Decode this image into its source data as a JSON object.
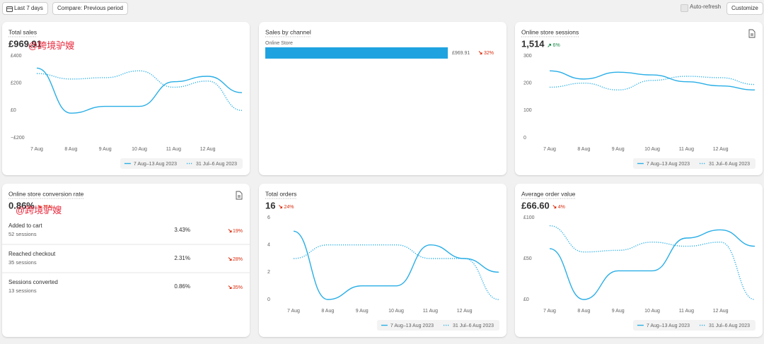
{
  "toolbar": {
    "date_range": "Last 7 days",
    "compare": "Compare: Previous period",
    "auto_refresh": "Auto-refresh",
    "customize": "Customize"
  },
  "watermark": "@跨境驴嫂",
  "chart_data": [
    {
      "type": "line",
      "title": "Total sales",
      "value": "£969.91",
      "categories": [
        "7 Aug",
        "8 Aug",
        "9 Aug",
        "10 Aug",
        "11 Aug",
        "12 Aug",
        null
      ],
      "series": [
        {
          "name": "7 Aug–13 Aug 2023",
          "color": "#29aee6",
          "line_style": "solid",
          "values": [
            310,
            -20,
            30,
            30,
            210,
            250,
            130
          ]
        },
        {
          "name": "31 Jul–6 Aug 2023",
          "color": "#29aee6",
          "line_style": "dotted",
          "values": [
            270,
            230,
            240,
            290,
            170,
            215,
            0
          ]
        }
      ],
      "ylim": [
        -200,
        400
      ],
      "yticks": [
        {
          "value": 400,
          "label": "£400"
        },
        {
          "value": 200,
          "label": "£200"
        },
        {
          "value": 0,
          "label": "£0"
        },
        {
          "value": -200,
          "label": "−£200"
        }
      ],
      "grid": false
    },
    {
      "type": "bar",
      "title": "Sales by channel",
      "change": "32%",
      "trend": "down",
      "categories": [
        "Online Store"
      ],
      "values": [
        969.91
      ],
      "value_labels": [
        "£969.91"
      ],
      "color": "#1fa3e0"
    },
    {
      "type": "line",
      "title": "Online store sessions",
      "value": "1,514",
      "change": "6%",
      "trend": "up",
      "categories": [
        "7 Aug",
        "8 Aug",
        "9 Aug",
        "10 Aug",
        "11 Aug",
        "12 Aug",
        null
      ],
      "series": [
        {
          "name": "7 Aug–13 Aug 2023",
          "color": "#29aee6",
          "line_style": "solid",
          "values": [
            245,
            215,
            240,
            230,
            205,
            190,
            175
          ]
        },
        {
          "name": "31 Jul–6 Aug 2023",
          "color": "#29aee6",
          "line_style": "dotted",
          "values": [
            185,
            200,
            175,
            210,
            225,
            220,
            195
          ]
        }
      ],
      "ylim": [
        0,
        300
      ],
      "yticks": [
        300,
        200,
        100,
        0
      ],
      "grid": false
    },
    {
      "type": "line",
      "title": "Total orders",
      "value": "16",
      "change": "24%",
      "trend": "down",
      "categories": [
        "7 Aug",
        "8 Aug",
        "9 Aug",
        "10 Aug",
        "11 Aug",
        "12 Aug",
        null
      ],
      "series": [
        {
          "name": "7 Aug–13 Aug 2023",
          "color": "#29aee6",
          "line_style": "solid",
          "values": [
            5,
            0,
            1,
            1,
            4,
            3,
            2
          ]
        },
        {
          "name": "31 Jul–6 Aug 2023",
          "color": "#29aee6",
          "line_style": "dotted",
          "values": [
            3,
            4,
            4,
            4,
            3,
            3,
            0
          ]
        }
      ],
      "ylim": [
        0,
        6
      ],
      "yticks": [
        6,
        4,
        2,
        0
      ],
      "grid": false
    },
    {
      "type": "line",
      "title": "Average order value",
      "value": "£66.60",
      "change": "4%",
      "trend": "down",
      "categories": [
        "7 Aug",
        "8 Aug",
        "9 Aug",
        "10 Aug",
        "11 Aug",
        "12 Aug",
        null
      ],
      "series": [
        {
          "name": "7 Aug–13 Aug 2023",
          "color": "#29aee6",
          "line_style": "solid",
          "values": [
            62,
            0,
            35,
            35,
            75,
            85,
            65
          ]
        },
        {
          "name": "31 Jul–6 Aug 2023",
          "color": "#29aee6",
          "line_style": "dotted",
          "values": [
            90,
            58,
            60,
            70,
            65,
            70,
            0
          ]
        }
      ],
      "ylim": [
        0,
        100
      ],
      "yticks": [
        {
          "value": 100,
          "label": "£100"
        },
        {
          "value": 50,
          "label": "£50"
        },
        {
          "value": 0,
          "label": "£0"
        }
      ],
      "grid": false
    }
  ],
  "conversion_card": {
    "title": "Online store conversion rate",
    "value": "0.86%",
    "change": "35%",
    "trend": "down",
    "rows": [
      {
        "label": "Added to cart",
        "sessions": "52 sessions",
        "rate": "3.43%",
        "change": "19%"
      },
      {
        "label": "Reached checkout",
        "sessions": "35 sessions",
        "rate": "2.31%",
        "change": "28%"
      },
      {
        "label": "Sessions converted",
        "sessions": "13 sessions",
        "rate": "0.86%",
        "change": "35%"
      }
    ]
  }
}
